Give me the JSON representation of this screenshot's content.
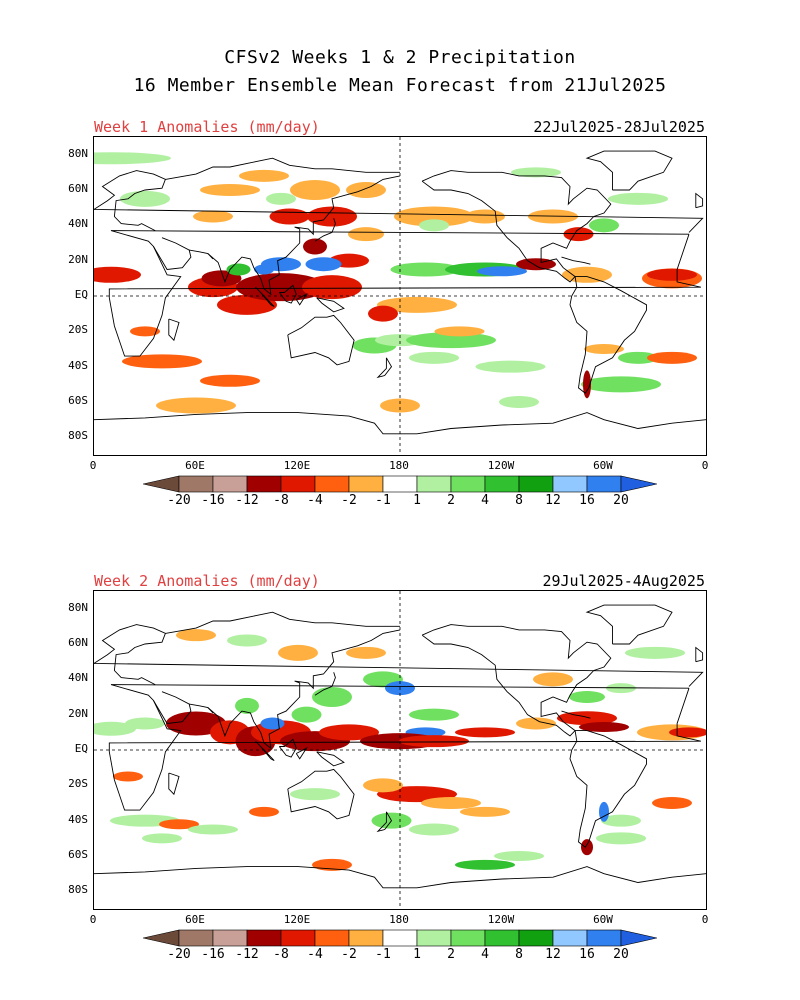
{
  "header": {
    "line1": "CFSv2 Weeks 1 & 2 Precipitation",
    "line2": "16 Member Ensemble Mean Forecast from 21Jul2025"
  },
  "panels": [
    {
      "label": "Week 1 Anomalies (mm/day)",
      "dates": "22Jul2025-28Jul2025"
    },
    {
      "label": "Week 2 Anomalies (mm/day)",
      "dates": "29Jul2025-4Aug2025"
    }
  ],
  "axes": {
    "lat_labels": [
      "80N",
      "60N",
      "40N",
      "20N",
      "EQ",
      "20S",
      "40S",
      "60S",
      "80S"
    ],
    "lon_labels": [
      "0",
      "60E",
      "120E",
      "180",
      "120W",
      "60W",
      "0"
    ]
  },
  "colorbar": {
    "labels": [
      "-20",
      "-16",
      "-12",
      "-8",
      "-4",
      "-2",
      "-1",
      "1",
      "2",
      "4",
      "8",
      "12",
      "16",
      "20"
    ],
    "colors": [
      "#6b4a3a",
      "#a07868",
      "#c8a098",
      "#a00000",
      "#e01800",
      "#ff6010",
      "#ffb040",
      "#ffffff",
      "#b0f0a0",
      "#70e060",
      "#30c030",
      "#10a010",
      "#90c8ff",
      "#3080f0",
      "#2060e0"
    ]
  }
}
